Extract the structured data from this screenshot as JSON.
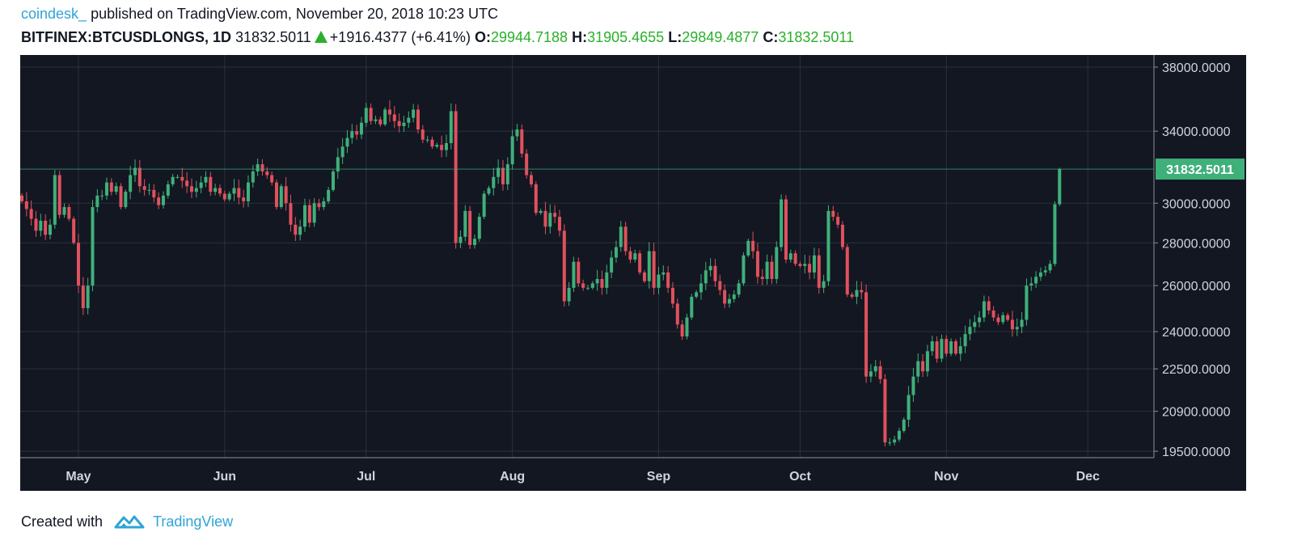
{
  "header": {
    "author": "coindesk_",
    "published": "published on TradingView.com, November 20, 2018 10:23 UTC"
  },
  "ticker": {
    "symbol": "BITFINEX:BTCUSDLONGS, 1D",
    "last": "31832.5011",
    "change": "+1916.4377 (+6.41%)",
    "open_label": "O:",
    "open": "29944.7188",
    "high_label": "H:",
    "high": "31905.4655",
    "low_label": "L:",
    "low": "29849.4877",
    "close_label": "C:",
    "close": "31832.5011"
  },
  "footer": {
    "created_with": "Created with",
    "brand": "TradingView"
  },
  "colors": {
    "up": "#3fb07a",
    "down": "#e0515e",
    "background": "#131722",
    "grid": "#2b303b",
    "price_tag": "#3fb07a",
    "brand": "#2fa4d6"
  },
  "chart_data": {
    "type": "candlestick",
    "scale": "log",
    "y_ticks": [
      "38000.0000",
      "34000.0000",
      "30000.0000",
      "28000.0000",
      "26000.0000",
      "24000.0000",
      "22500.0000",
      "20900.0000",
      "19500.0000"
    ],
    "x_ticks": [
      "May",
      "Jun",
      "Jul",
      "Aug",
      "Sep",
      "Oct",
      "Nov",
      "Dec"
    ],
    "x_tick_dates": [
      "2018-05-01",
      "2018-06-01",
      "2018-07-01",
      "2018-08-01",
      "2018-09-01",
      "2018-10-01",
      "2018-11-01",
      "2018-12-01"
    ],
    "start_date": "2018-04-19",
    "last_price_label": "31832.5011",
    "last_price": 31832.5011,
    "grid": true,
    "closes": [
      30100,
      29700,
      29200,
      28600,
      29100,
      28400,
      28900,
      31500,
      29400,
      29800,
      29200,
      28000,
      26000,
      25000,
      26000,
      29800,
      30400,
      30400,
      31100,
      30600,
      30900,
      29800,
      30600,
      31500,
      31900,
      30900,
      30700,
      30700,
      30300,
      29900,
      30400,
      31000,
      31400,
      31400,
      31200,
      30900,
      30600,
      30800,
      31100,
      31400,
      30600,
      30800,
      30500,
      30200,
      30500,
      30800,
      30300,
      30100,
      31100,
      31700,
      32100,
      31700,
      31500,
      31100,
      29800,
      30900,
      30000,
      28900,
      28400,
      28800,
      29900,
      29000,
      30000,
      29800,
      30100,
      30700,
      31700,
      32500,
      33100,
      33600,
      34000,
      33800,
      34500,
      35400,
      34600,
      34700,
      34400,
      35300,
      35000,
      34600,
      34300,
      34500,
      34800,
      35300,
      34100,
      33500,
      33500,
      33100,
      33200,
      32900,
      33300,
      35200,
      28000,
      28300,
      29600,
      27900,
      28200,
      29300,
      30500,
      30800,
      31400,
      31900,
      31000,
      32100,
      33700,
      34100,
      32700,
      31500,
      31000,
      29500,
      29600,
      28800,
      29500,
      29300,
      28600,
      25300,
      25900,
      27100,
      26100,
      25900,
      25900,
      26100,
      26300,
      25900,
      26600,
      27300,
      27800,
      28800,
      27600,
      27200,
      27500,
      26600,
      26200,
      27600,
      25900,
      26500,
      26600,
      25900,
      25200,
      24300,
      23800,
      24600,
      25500,
      25700,
      26100,
      26700,
      26900,
      26200,
      25800,
      25200,
      25400,
      25600,
      26100,
      27400,
      28100,
      27600,
      26400,
      26300,
      27100,
      26300,
      27800,
      30200,
      27200,
      27500,
      27000,
      26900,
      27000,
      26600,
      27400,
      25900,
      26200,
      29600,
      29300,
      28900,
      27800,
      25600,
      25500,
      25800,
      25700,
      22200,
      22400,
      22600,
      22100,
      19800,
      19800,
      19900,
      20200,
      20600,
      21500,
      22200,
      22800,
      22400,
      23200,
      23600,
      22900,
      23700,
      23100,
      23600,
      23100,
      23400,
      23900,
      24200,
      24400,
      24600,
      25300,
      24900,
      24600,
      24400,
      24700,
      24500,
      24100,
      24200,
      24500,
      26000,
      26100,
      26400,
      26600,
      26700,
      27000,
      29944.7188,
      31832.5011
    ]
  }
}
